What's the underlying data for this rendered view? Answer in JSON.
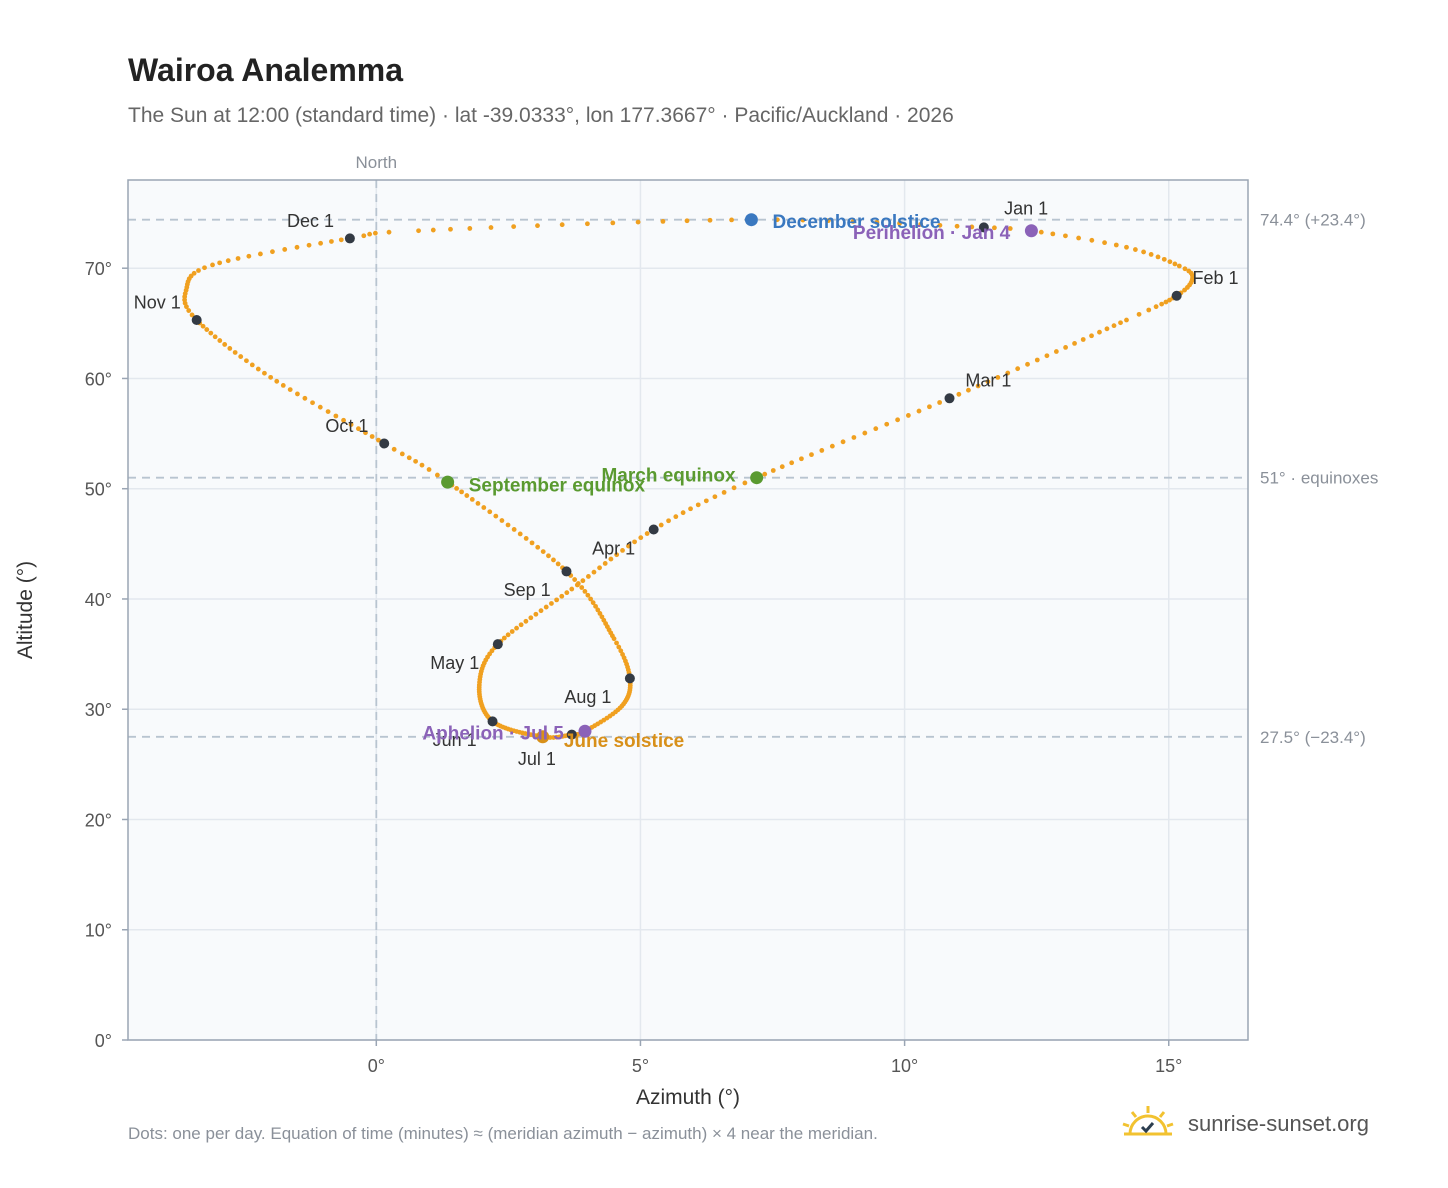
{
  "title": "Wairoa Analemma",
  "subtitle": "The Sun at 12:00 (standard time) · lat -39.0333°, lon 177.3667° · Pacific/Auckland · 2026",
  "footnote": "Dots: one per day. Equation of time (minutes) ≈ (meridian azimuth − azimuth) × 4 near the meridian.",
  "brand": {
    "text": "sunrise-sunset.org",
    "icon": "sun-logo-icon"
  },
  "colors": {
    "path": "#f0a020",
    "month_marker": "#333a44",
    "december_solstice": "#3a78c0",
    "june_solstice": "#d8901a",
    "equinox": "#5a9a30",
    "apsis": "#8b62b8",
    "reference_line": "#b8c4d0",
    "plot_background": "#f8fafc",
    "frame": "#9aa5b4"
  },
  "chart_data": {
    "type": "scatter",
    "xlabel": "Azimuth (°)",
    "ylabel": "Altitude (°)",
    "xlim": [
      -4.7,
      16.5
    ],
    "ylim": [
      0,
      78
    ],
    "x_ticks": [
      {
        "value": 0,
        "label": "0°"
      },
      {
        "value": 5,
        "label": "5°"
      },
      {
        "value": 10,
        "label": "10°"
      },
      {
        "value": 15,
        "label": "15°"
      }
    ],
    "y_ticks": [
      {
        "value": 0,
        "label": "0°"
      },
      {
        "value": 10,
        "label": "10°"
      },
      {
        "value": 20,
        "label": "20°"
      },
      {
        "value": 30,
        "label": "30°"
      },
      {
        "value": 40,
        "label": "40°"
      },
      {
        "value": 50,
        "label": "50°"
      },
      {
        "value": 60,
        "label": "60°"
      },
      {
        "value": 70,
        "label": "70°"
      }
    ],
    "grid": true,
    "vertical_reference": {
      "x": 0,
      "label": "North"
    },
    "horizontal_references": [
      {
        "y": 74.4,
        "label": "74.4° (+23.4°)"
      },
      {
        "y": 51.0,
        "label": "51° · equinoxes"
      },
      {
        "y": 27.5,
        "label": "27.5° (−23.4°)"
      }
    ],
    "path_anchors": [
      {
        "doy": 1,
        "x": 11.5,
        "y": 73.7
      },
      {
        "doy": 4,
        "x": 12.4,
        "y": 73.4
      },
      {
        "doy": 12,
        "x": 14.2,
        "y": 71.9
      },
      {
        "doy": 20,
        "x": 15.2,
        "y": 70.2
      },
      {
        "doy": 25,
        "x": 15.45,
        "y": 69.1
      },
      {
        "doy": 32,
        "x": 15.15,
        "y": 67.5
      },
      {
        "doy": 40,
        "x": 14.2,
        "y": 65.3
      },
      {
        "doy": 60,
        "x": 10.85,
        "y": 58.2
      },
      {
        "doy": 79,
        "x": 7.2,
        "y": 51.0
      },
      {
        "doy": 91,
        "x": 5.25,
        "y": 46.3
      },
      {
        "doy": 105,
        "x": 3.7,
        "y": 40.9
      },
      {
        "doy": 121,
        "x": 2.3,
        "y": 35.9
      },
      {
        "doy": 135,
        "x": 1.95,
        "y": 32.2
      },
      {
        "doy": 152,
        "x": 2.2,
        "y": 28.9
      },
      {
        "doy": 172,
        "x": 3.15,
        "y": 27.5
      },
      {
        "doy": 182,
        "x": 3.7,
        "y": 27.7
      },
      {
        "doy": 186,
        "x": 3.95,
        "y": 28.0
      },
      {
        "doy": 200,
        "x": 4.65,
        "y": 30.3
      },
      {
        "doy": 213,
        "x": 4.8,
        "y": 32.8
      },
      {
        "doy": 225,
        "x": 4.5,
        "y": 36.4
      },
      {
        "doy": 244,
        "x": 3.6,
        "y": 42.5
      },
      {
        "doy": 266,
        "x": 1.35,
        "y": 50.6
      },
      {
        "doy": 274,
        "x": 0.15,
        "y": 54.1
      },
      {
        "doy": 290,
        "x": -2.0,
        "y": 60.1
      },
      {
        "doy": 305,
        "x": -3.4,
        "y": 65.3
      },
      {
        "doy": 313,
        "x": -3.6,
        "y": 68.0
      },
      {
        "doy": 322,
        "x": -3.1,
        "y": 70.3
      },
      {
        "doy": 335,
        "x": -0.5,
        "y": 72.7
      },
      {
        "doy": 340,
        "x": 0.8,
        "y": 73.4
      },
      {
        "doy": 355,
        "x": 7.1,
        "y": 74.4
      },
      {
        "doy": 366,
        "x": 11.5,
        "y": 73.7
      }
    ],
    "month_markers": [
      {
        "label": "Jan 1",
        "x": 11.5,
        "y": 73.7,
        "anchor": "middle",
        "lx": 0.8,
        "ly": 1.7
      },
      {
        "label": "Feb 1",
        "x": 15.15,
        "y": 67.5,
        "anchor": "start",
        "lx": 0.3,
        "ly": 1.6
      },
      {
        "label": "Mar 1",
        "x": 10.85,
        "y": 58.2,
        "anchor": "start",
        "lx": 0.3,
        "ly": 1.6
      },
      {
        "label": "Apr 1",
        "x": 5.25,
        "y": 46.3,
        "anchor": "end",
        "lx": -0.35,
        "ly": -1.7
      },
      {
        "label": "May 1",
        "x": 2.3,
        "y": 35.9,
        "anchor": "end",
        "lx": -0.35,
        "ly": -1.7
      },
      {
        "label": "Jun 1",
        "x": 2.2,
        "y": 28.9,
        "anchor": "end",
        "lx": -0.3,
        "ly": -1.7
      },
      {
        "label": "Jul 1",
        "x": 3.7,
        "y": 27.7,
        "anchor": "end",
        "lx": -0.3,
        "ly": -2.2
      },
      {
        "label": "Aug 1",
        "x": 4.8,
        "y": 32.8,
        "anchor": "end",
        "lx": -0.35,
        "ly": -1.7
      },
      {
        "label": "Sep 1",
        "x": 3.6,
        "y": 42.5,
        "anchor": "end",
        "lx": -0.3,
        "ly": -1.7
      },
      {
        "label": "Oct 1",
        "x": 0.15,
        "y": 54.1,
        "anchor": "end",
        "lx": -0.3,
        "ly": 1.6
      },
      {
        "label": "Nov 1",
        "x": -3.4,
        "y": 65.3,
        "anchor": "end",
        "lx": -0.3,
        "ly": 1.6
      },
      {
        "label": "Dec 1",
        "x": -0.5,
        "y": 72.7,
        "anchor": "end",
        "lx": -0.3,
        "ly": 1.6
      }
    ],
    "events": [
      {
        "label": "December solstice",
        "x": 7.1,
        "y": 74.4,
        "color_key": "december_solstice",
        "anchor": "start",
        "lx": 0.4,
        "ly": -0.2
      },
      {
        "label": "Perihelion · Jan 4",
        "x": 12.4,
        "y": 73.4,
        "color_key": "apsis",
        "anchor": "end",
        "lx": -0.4,
        "ly": -0.2
      },
      {
        "label": "March equinox",
        "x": 7.2,
        "y": 51.0,
        "color_key": "equinox",
        "anchor": "end",
        "lx": -0.4,
        "ly": 0.2
      },
      {
        "label": "September equinox",
        "x": 1.35,
        "y": 50.6,
        "color_key": "equinox",
        "anchor": "start",
        "lx": 0.4,
        "ly": -0.3
      },
      {
        "label": "June solstice",
        "x": 3.15,
        "y": 27.5,
        "color_key": "june_solstice",
        "anchor": "start",
        "lx": 0.4,
        "ly": -0.4
      },
      {
        "label": "Aphelion · Jul 5",
        "x": 3.95,
        "y": 28.0,
        "color_key": "apsis",
        "anchor": "end",
        "lx": -0.4,
        "ly": -0.2
      }
    ]
  }
}
